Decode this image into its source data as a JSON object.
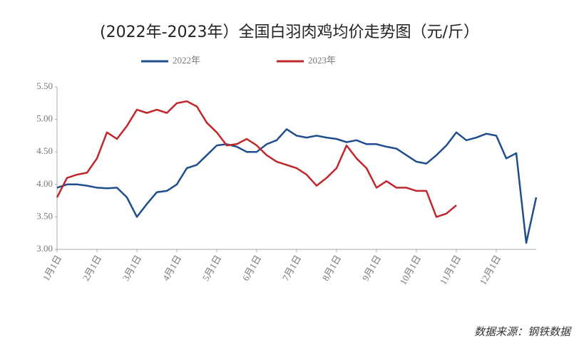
{
  "chart_data": {
    "type": "line",
    "title": "(2022年-2023年）全国白羽肉鸡均价走势图（元/斤）",
    "categories": [
      "1月1日",
      null,
      null,
      null,
      "2月1日",
      null,
      null,
      null,
      "3月1日",
      null,
      null,
      null,
      "4月1日",
      null,
      null,
      null,
      "5月1日",
      null,
      null,
      null,
      "6月1日",
      null,
      null,
      null,
      "7月1日",
      null,
      null,
      null,
      "8月1日",
      null,
      null,
      null,
      "9月1日",
      null,
      null,
      null,
      "10月1日",
      null,
      null,
      null,
      "11月1日",
      null,
      null,
      null,
      "12月1日",
      null,
      null,
      null,
      null
    ],
    "series": [
      {
        "name": "2022年",
        "color": "#1f4e8c",
        "values": [
          3.95,
          4.0,
          4.0,
          3.98,
          3.95,
          3.94,
          3.95,
          3.8,
          3.5,
          3.7,
          3.88,
          3.9,
          4.0,
          4.25,
          4.3,
          4.45,
          4.6,
          4.62,
          4.58,
          4.5,
          4.5,
          4.62,
          4.68,
          4.85,
          4.75,
          4.72,
          4.75,
          4.72,
          4.7,
          4.65,
          4.68,
          4.62,
          4.62,
          4.58,
          4.55,
          4.45,
          4.35,
          4.32,
          4.45,
          4.6,
          4.8,
          4.68,
          4.72,
          4.78,
          4.75,
          4.4,
          4.48,
          3.1,
          3.8
        ]
      },
      {
        "name": "2023年",
        "color": "#c0272d",
        "values": [
          3.8,
          4.1,
          4.15,
          4.18,
          4.4,
          4.8,
          4.7,
          4.9,
          5.15,
          5.1,
          5.15,
          5.1,
          5.25,
          5.28,
          5.2,
          4.95,
          4.8,
          4.6,
          4.62,
          4.7,
          4.6,
          4.45,
          4.35,
          4.3,
          4.25,
          4.15,
          3.98,
          4.1,
          4.25,
          4.6,
          4.4,
          4.25,
          3.95,
          4.05,
          3.95,
          3.95,
          3.9,
          3.9,
          3.5,
          3.55,
          3.68,
          null,
          null,
          null,
          null,
          null,
          null,
          null,
          null
        ]
      }
    ],
    "ylim": [
      3.0,
      5.5
    ],
    "yticks": [
      {
        "value": 3.0,
        "label": "3.00"
      },
      {
        "value": 3.5,
        "label": "3.50"
      },
      {
        "value": 4.0,
        "label": "4.00"
      },
      {
        "value": 4.5,
        "label": "4.50"
      },
      {
        "value": 5.0,
        "label": "5.00"
      },
      {
        "value": 5.5,
        "label": "5.50"
      }
    ],
    "grid": false,
    "source": "数据来源：钢铁数据"
  }
}
